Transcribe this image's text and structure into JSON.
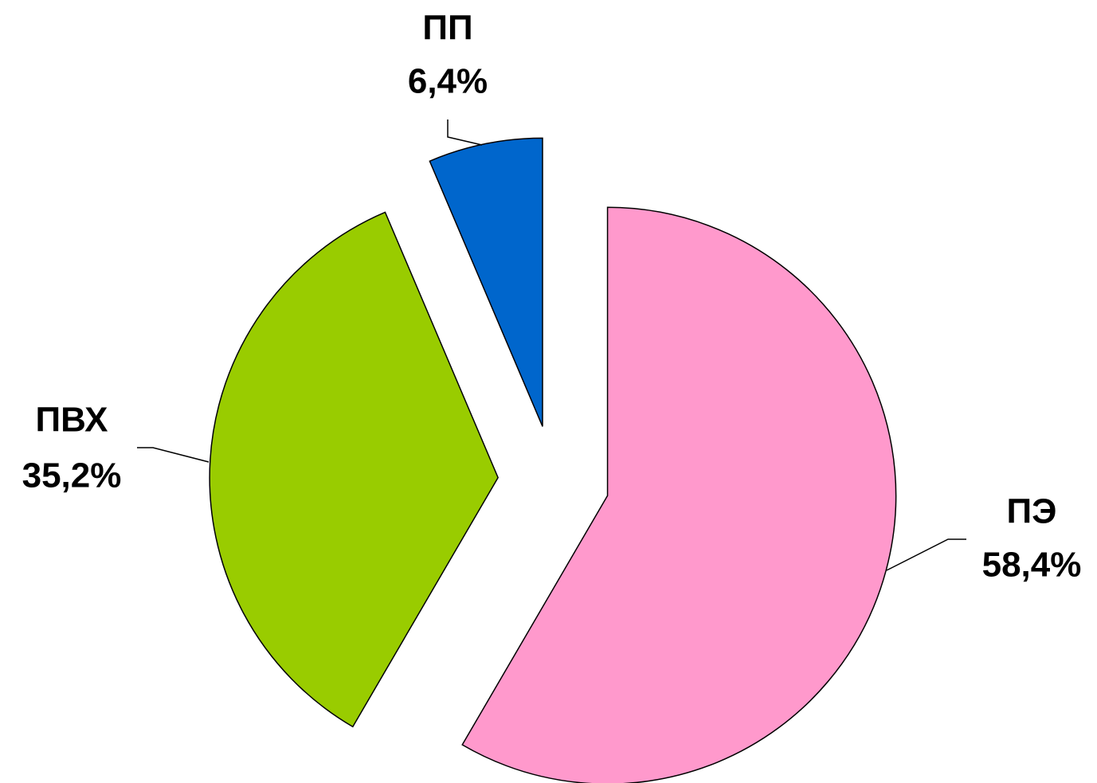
{
  "chart_data": {
    "type": "pie",
    "categories": [
      "ПЭ",
      "ПВХ",
      "ПП"
    ],
    "values": [
      58.4,
      35.2,
      6.4
    ],
    "value_labels": [
      "58,4%",
      "35,2%",
      "6,4%"
    ],
    "colors": [
      "#ff99cc",
      "#99cc00",
      "#0066cc"
    ]
  }
}
